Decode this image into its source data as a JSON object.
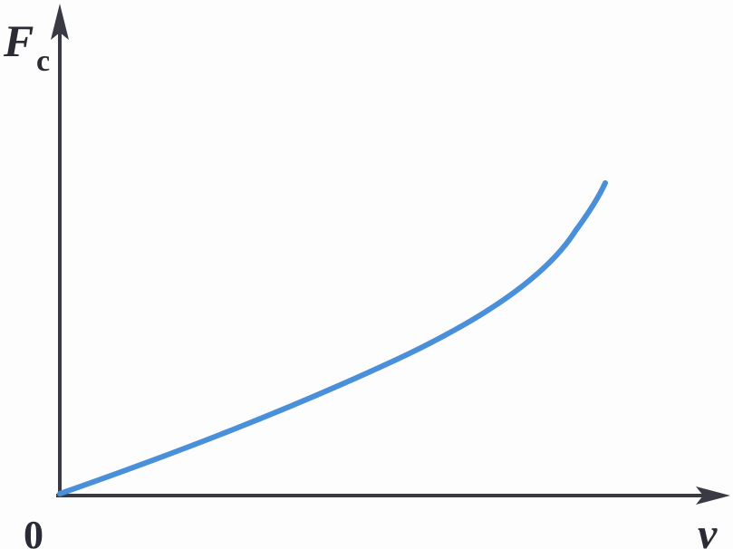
{
  "axes": {
    "y_label": "F",
    "y_label_subscript": "c",
    "x_label": "v",
    "origin": "0"
  }
}
